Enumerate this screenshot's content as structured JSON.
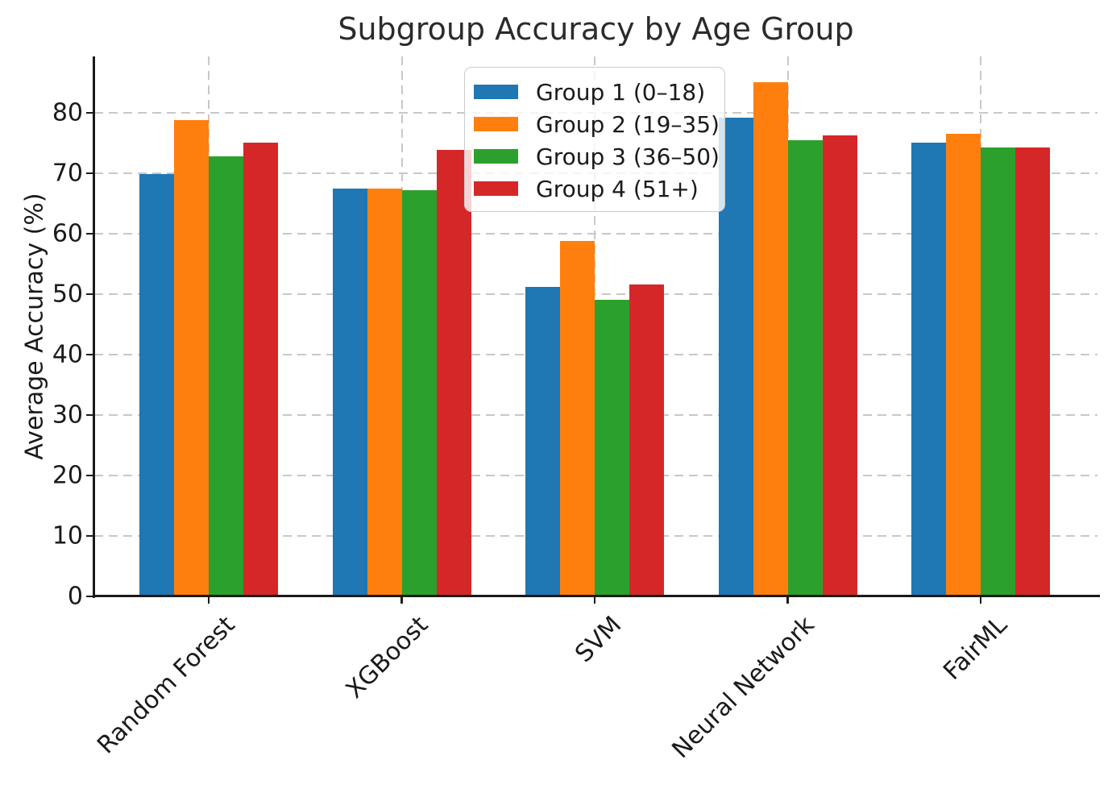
{
  "chart_data": {
    "type": "bar",
    "title": "Subgroup Accuracy by Age Group",
    "xlabel": "",
    "ylabel": "Average Accuracy (%)",
    "categories": [
      "Random Forest",
      "XGBoost",
      "SVM",
      "Neural Network",
      "FairML"
    ],
    "series": [
      {
        "name": "Group 1 (0–18)",
        "color": "#1f77b4",
        "values": [
          69.9,
          67.5,
          51.2,
          79.2,
          75.0
        ]
      },
      {
        "name": "Group 2 (19–35)",
        "color": "#ff7f0e",
        "values": [
          78.8,
          67.4,
          58.8,
          85.0,
          76.5
        ]
      },
      {
        "name": "Group 3 (36–50)",
        "color": "#2ca02c",
        "values": [
          72.8,
          67.2,
          49.1,
          75.5,
          74.2
        ]
      },
      {
        "name": "Group 4 (51+)",
        "color": "#d62728",
        "values": [
          75.0,
          73.8,
          51.6,
          76.3,
          74.3
        ]
      }
    ],
    "yticks": [
      0,
      10,
      20,
      30,
      40,
      50,
      60,
      70,
      80
    ],
    "ylim": [
      0,
      89.33
    ],
    "grid": {
      "show": true,
      "style": "dashed",
      "color": "#c8c8c8",
      "axes": "both",
      "axisbelow": true
    },
    "legend": {
      "position": "upper center-right",
      "frame": true,
      "framealpha": 0.8
    },
    "spine_color": "#1a1a1a",
    "background": "#ffffff"
  }
}
